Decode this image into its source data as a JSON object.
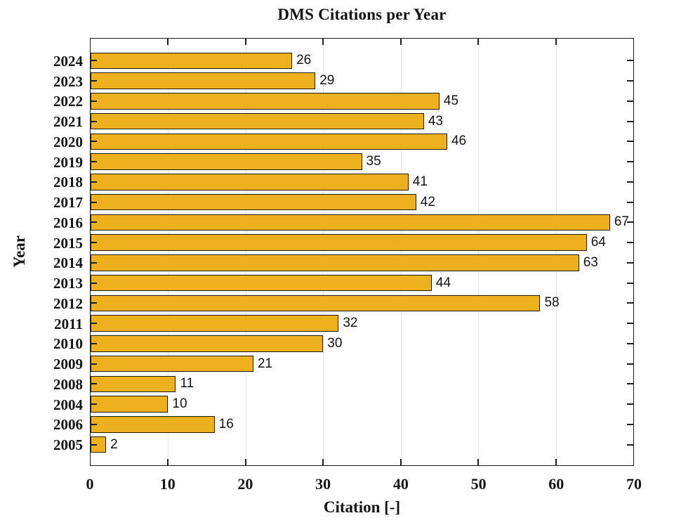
{
  "title": "DMS Citations per Year",
  "x_axis": {
    "label": "Citation [-]",
    "tick_labels": [
      "0",
      "10",
      "20",
      "30",
      "40",
      "50",
      "60",
      "70"
    ]
  },
  "y_axis": {
    "label": "Year"
  },
  "colors": {
    "bar_fill": "#EDB120",
    "bar_edge": "#211a05",
    "axes": "#1f1f1f",
    "grid": "#e7e7e7",
    "text": "#141414"
  },
  "chart_data": {
    "type": "bar",
    "orientation": "horizontal",
    "title": "DMS Citations per Year",
    "xlabel": "Citation [-]",
    "ylabel": "Year",
    "categories": [
      "2024",
      "2023",
      "2022",
      "2021",
      "2020",
      "2019",
      "2018",
      "2017",
      "2016",
      "2015",
      "2014",
      "2013",
      "2012",
      "2011",
      "2010",
      "2009",
      "2008",
      "2004",
      "2006",
      "2005"
    ],
    "values": [
      26,
      29,
      45,
      43,
      46,
      35,
      41,
      42,
      67,
      64,
      63,
      44,
      58,
      32,
      30,
      21,
      11,
      10,
      16,
      2
    ],
    "xlim": [
      0,
      70
    ],
    "xticks": [
      0,
      10,
      20,
      30,
      40,
      50,
      60,
      70
    ],
    "grid": "vertical-only",
    "legend": "none",
    "value_labels_shown": true
  }
}
